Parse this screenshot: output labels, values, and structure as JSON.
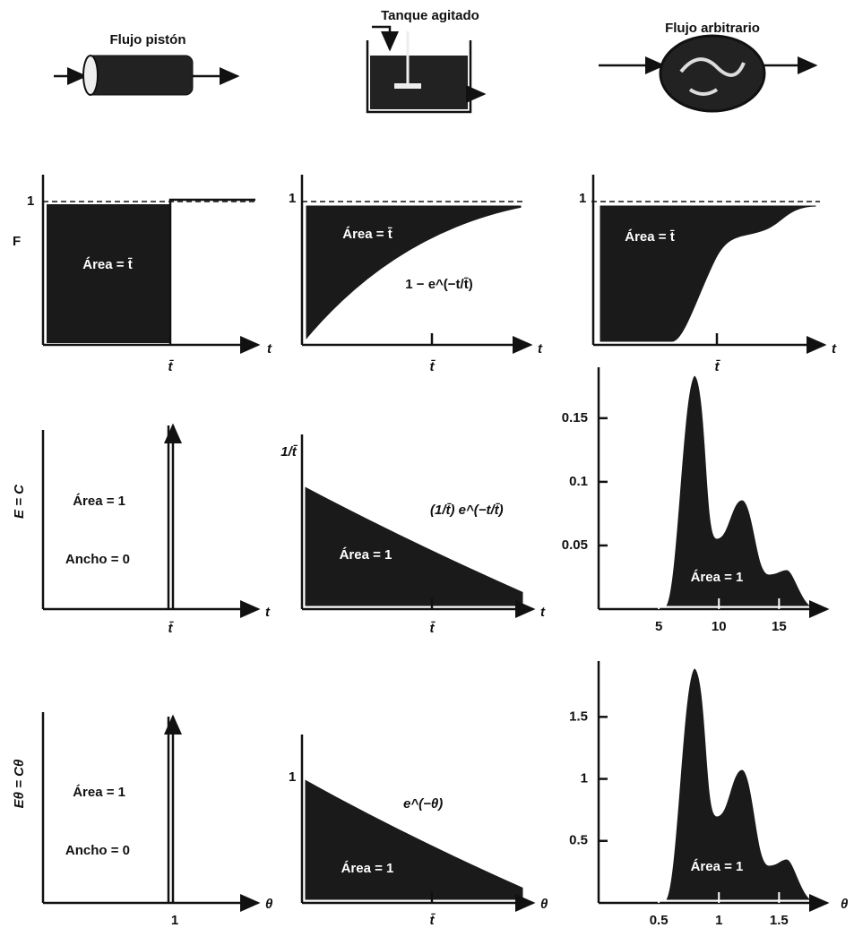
{
  "header": {
    "plug": "Flujo pistón",
    "mixed": "Tanque agitado",
    "arbitrary": "Flujo arbitrario"
  },
  "rows": {
    "F": {
      "label": "F",
      "plots": [
        {
          "one": "1",
          "area": "Área = t̄",
          "tbar": "t̄",
          "axis": "t"
        },
        {
          "one": "1",
          "area": "Área = t̄",
          "curve": "1 − e^(−t/t̄)",
          "tbar": "t̄",
          "axis": "t"
        },
        {
          "one": "1",
          "area": "Área = t̄",
          "tbar": "t̄",
          "axis": "t"
        }
      ]
    },
    "E": {
      "label": "E = C",
      "plots": [
        {
          "area": "Área = 1",
          "width": "Ancho = 0",
          "tbar": "t̄",
          "axis": "t"
        },
        {
          "ymark": "1/t̄",
          "curve": "(1/t̄) e^(−t/t̄)",
          "area": "Área = 1",
          "tbar": "t̄",
          "axis": "t"
        },
        {
          "area": "Área = 1",
          "xlim": [
            0,
            18.4
          ],
          "xticks": [
            5,
            10,
            15
          ],
          "ylim": [
            0,
            0.19
          ],
          "yticks": [
            0.05,
            0.1,
            0.15
          ]
        }
      ]
    },
    "Etheta": {
      "label": "Eθ = Cθ",
      "plots": [
        {
          "area": "Área = 1",
          "width": "Ancho = 0",
          "tick": "1",
          "axis": "θ"
        },
        {
          "one": "1",
          "curve": "e^(−θ)",
          "area": "Área = 1",
          "tbar": "t̄",
          "axis": "θ"
        },
        {
          "area": "Área = 1",
          "axis": "θ",
          "xlim": [
            0,
            1.84
          ],
          "xticks": [
            0.5,
            1,
            1.5
          ],
          "ylim": [
            0,
            1.95
          ],
          "yticks": [
            0.5,
            1.0,
            1.5
          ]
        }
      ]
    }
  }
}
